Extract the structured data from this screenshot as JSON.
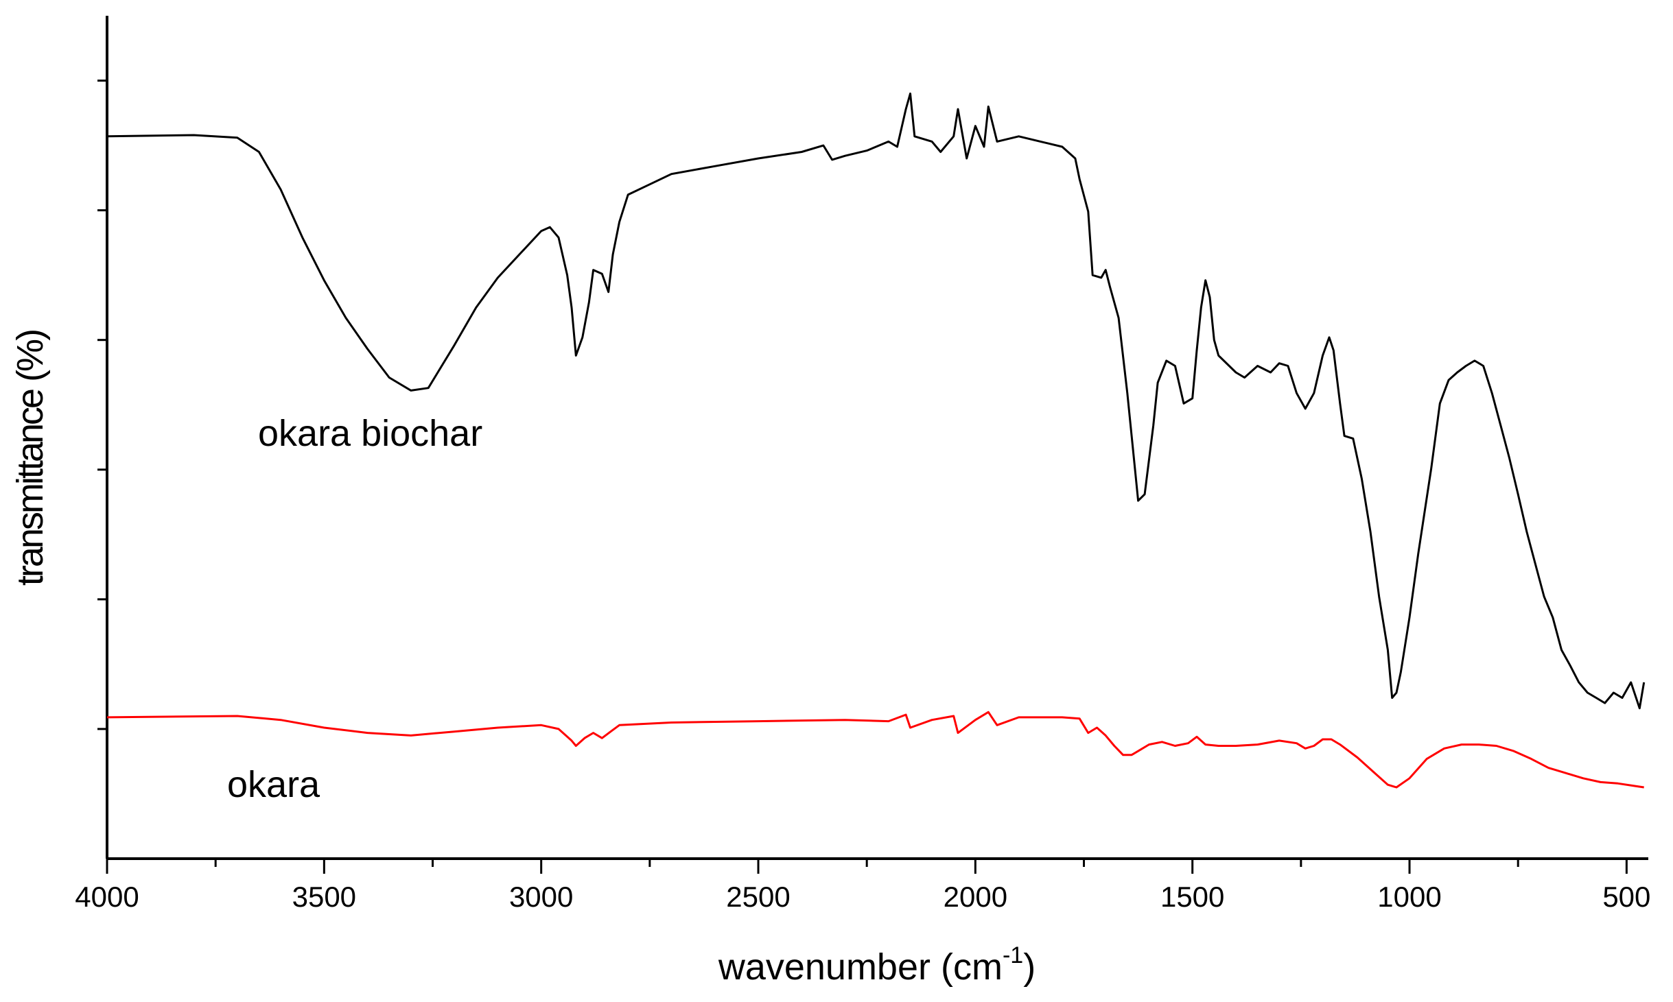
{
  "chart_data": {
    "type": "line",
    "xlabel": [
      "wavenumber (cm",
      "-1",
      ")"
    ],
    "ylabel": "transmittance (%)",
    "xlim": [
      4000,
      450
    ],
    "xticks": [
      4000,
      3500,
      3000,
      2500,
      2000,
      1500,
      1000,
      500
    ],
    "xminor_ticks": [
      3750,
      3250,
      2750,
      2250,
      1750,
      1250,
      750
    ],
    "ylim": [
      0,
      6.5
    ],
    "yticks": [
      1,
      2,
      3,
      4,
      5,
      6
    ],
    "annotations": [
      "okara biochar",
      "okara"
    ],
    "series": [
      {
        "name": "okara biochar",
        "color": "#000000",
        "x": [
          4000,
          3800,
          3700,
          3650,
          3600,
          3550,
          3500,
          3450,
          3400,
          3350,
          3300,
          3260,
          3200,
          3150,
          3100,
          3050,
          3000,
          2980,
          2960,
          2940,
          2930,
          2920,
          2905,
          2890,
          2880,
          2860,
          2845,
          2835,
          2820,
          2800,
          2750,
          2700,
          2600,
          2500,
          2400,
          2350,
          2330,
          2300,
          2250,
          2200,
          2180,
          2160,
          2150,
          2140,
          2100,
          2080,
          2050,
          2040,
          2020,
          2000,
          1980,
          1970,
          1950,
          1900,
          1850,
          1800,
          1770,
          1760,
          1740,
          1730,
          1710,
          1700,
          1690,
          1670,
          1650,
          1640,
          1625,
          1610,
          1590,
          1580,
          1560,
          1540,
          1520,
          1500,
          1490,
          1480,
          1470,
          1460,
          1450,
          1440,
          1400,
          1380,
          1350,
          1320,
          1300,
          1280,
          1260,
          1240,
          1220,
          1200,
          1185,
          1175,
          1160,
          1150,
          1130,
          1110,
          1090,
          1070,
          1050,
          1040,
          1030,
          1020,
          1000,
          980,
          950,
          930,
          910,
          890,
          870,
          850,
          830,
          810,
          790,
          770,
          750,
          730,
          710,
          690,
          670,
          650,
          630,
          610,
          590,
          570,
          550,
          530,
          510,
          490,
          470,
          460
        ],
        "values": [
          5.57,
          5.58,
          5.56,
          5.45,
          5.16,
          4.79,
          4.46,
          4.17,
          3.93,
          3.71,
          3.61,
          3.63,
          3.96,
          4.25,
          4.48,
          4.66,
          4.84,
          4.87,
          4.79,
          4.5,
          4.25,
          3.88,
          4.02,
          4.29,
          4.54,
          4.51,
          4.37,
          4.66,
          4.91,
          5.12,
          5.2,
          5.28,
          5.34,
          5.4,
          5.45,
          5.5,
          5.39,
          5.42,
          5.46,
          5.53,
          5.49,
          5.78,
          5.9,
          5.57,
          5.53,
          5.45,
          5.57,
          5.78,
          5.4,
          5.65,
          5.49,
          5.8,
          5.53,
          5.57,
          5.53,
          5.49,
          5.4,
          5.24,
          4.99,
          4.5,
          4.48,
          4.54,
          4.41,
          4.17,
          3.59,
          3.26,
          2.76,
          2.81,
          3.34,
          3.67,
          3.84,
          3.8,
          3.51,
          3.55,
          3.92,
          4.25,
          4.46,
          4.33,
          4.0,
          3.88,
          3.75,
          3.71,
          3.8,
          3.75,
          3.82,
          3.8,
          3.59,
          3.47,
          3.59,
          3.88,
          4.02,
          3.92,
          3.51,
          3.26,
          3.24,
          2.93,
          2.52,
          2.02,
          1.61,
          1.24,
          1.28,
          1.44,
          1.86,
          2.35,
          3.01,
          3.51,
          3.69,
          3.75,
          3.8,
          3.84,
          3.8,
          3.59,
          3.34,
          3.09,
          2.81,
          2.52,
          2.27,
          2.02,
          1.86,
          1.61,
          1.49,
          1.36,
          1.28,
          1.24,
          1.2,
          1.28,
          1.24,
          1.36,
          1.16,
          1.36
        ]
      },
      {
        "name": "okara",
        "color": "#ff0000",
        "x": [
          4000,
          3700,
          3600,
          3500,
          3400,
          3300,
          3200,
          3100,
          3000,
          2960,
          2930,
          2920,
          2900,
          2880,
          2860,
          2840,
          2820,
          2700,
          2500,
          2300,
          2200,
          2160,
          2150,
          2100,
          2050,
          2040,
          2000,
          1970,
          1950,
          1900,
          1800,
          1760,
          1740,
          1720,
          1700,
          1680,
          1660,
          1640,
          1620,
          1600,
          1570,
          1540,
          1510,
          1490,
          1470,
          1440,
          1400,
          1350,
          1300,
          1260,
          1240,
          1220,
          1200,
          1180,
          1160,
          1120,
          1080,
          1050,
          1030,
          1000,
          960,
          920,
          880,
          840,
          800,
          760,
          720,
          680,
          640,
          600,
          560,
          520,
          480,
          460
        ],
        "values": [
          1.09,
          1.1,
          1.07,
          1.01,
          0.97,
          0.95,
          0.98,
          1.01,
          1.03,
          1.0,
          0.91,
          0.87,
          0.93,
          0.97,
          0.93,
          0.98,
          1.03,
          1.05,
          1.06,
          1.07,
          1.06,
          1.11,
          1.01,
          1.07,
          1.1,
          0.97,
          1.07,
          1.13,
          1.03,
          1.09,
          1.09,
          1.08,
          0.97,
          1.01,
          0.95,
          0.87,
          0.8,
          0.8,
          0.84,
          0.88,
          0.9,
          0.87,
          0.89,
          0.94,
          0.88,
          0.87,
          0.87,
          0.88,
          0.91,
          0.89,
          0.85,
          0.87,
          0.92,
          0.92,
          0.88,
          0.78,
          0.66,
          0.57,
          0.55,
          0.62,
          0.77,
          0.85,
          0.88,
          0.88,
          0.87,
          0.83,
          0.77,
          0.7,
          0.66,
          0.62,
          0.59,
          0.58,
          0.56,
          0.55
        ]
      }
    ]
  }
}
